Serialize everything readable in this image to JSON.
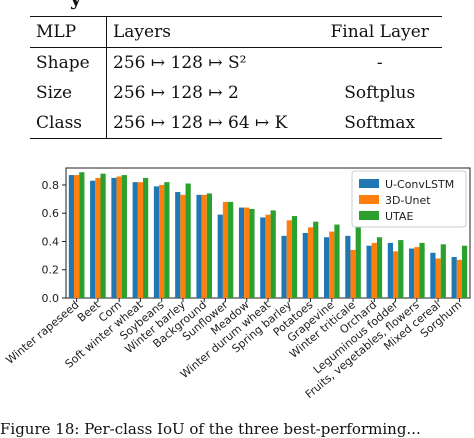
{
  "heading_fragment": "y",
  "table": {
    "headers": [
      "MLP",
      "Layers",
      "Final Layer"
    ],
    "rows": [
      {
        "name": "Shape",
        "layers": "256 ↦ 128 ↦ S²",
        "final": "-"
      },
      {
        "name": "Size",
        "layers": "256 ↦ 128 ↦ 2",
        "final": "Softplus"
      },
      {
        "name": "Class",
        "layers": "256 ↦ 128 ↦ 64 ↦ K",
        "final": "Softmax"
      }
    ]
  },
  "chart_data": {
    "type": "bar",
    "categories": [
      "Winter rapeseed",
      "Beet",
      "Corn",
      "Soft winter wheat",
      "Soybeans",
      "Winter barley",
      "Background",
      "Sunflower",
      "Meadow",
      "Winter durum wheat",
      "Spring barley",
      "Potatoes",
      "Grapevine",
      "Winter triticale",
      "Orchard",
      "Leguminous fodder",
      "Fruits, vegetables, flowers",
      "Mixed cereal",
      "Sorghum"
    ],
    "series": [
      {
        "name": "U-ConvLSTM",
        "color": "#1f77b4",
        "values": [
          0.87,
          0.83,
          0.85,
          0.82,
          0.79,
          0.75,
          0.73,
          0.59,
          0.64,
          0.57,
          0.44,
          0.46,
          0.43,
          0.44,
          0.37,
          0.39,
          0.35,
          0.32,
          0.29
        ]
      },
      {
        "name": "3D-Unet",
        "color": "#ff7f0e",
        "values": [
          0.87,
          0.85,
          0.86,
          0.82,
          0.8,
          0.73,
          0.73,
          0.68,
          0.64,
          0.59,
          0.55,
          0.5,
          0.47,
          0.34,
          0.39,
          0.33,
          0.36,
          0.28,
          0.27
        ]
      },
      {
        "name": "UTAE",
        "color": "#2ca02c",
        "values": [
          0.89,
          0.88,
          0.87,
          0.85,
          0.82,
          0.81,
          0.74,
          0.68,
          0.63,
          0.62,
          0.58,
          0.54,
          0.52,
          0.51,
          0.43,
          0.41,
          0.39,
          0.38,
          0.37
        ]
      }
    ],
    "yticks": [
      "0.0",
      "0.2",
      "0.4",
      "0.6",
      "0.8"
    ],
    "ylim": [
      0,
      0.92
    ],
    "legend_position": "top-right",
    "grid": false
  },
  "caption_fragment": "Figure 18: Per-class IoU of the three best-performing..."
}
